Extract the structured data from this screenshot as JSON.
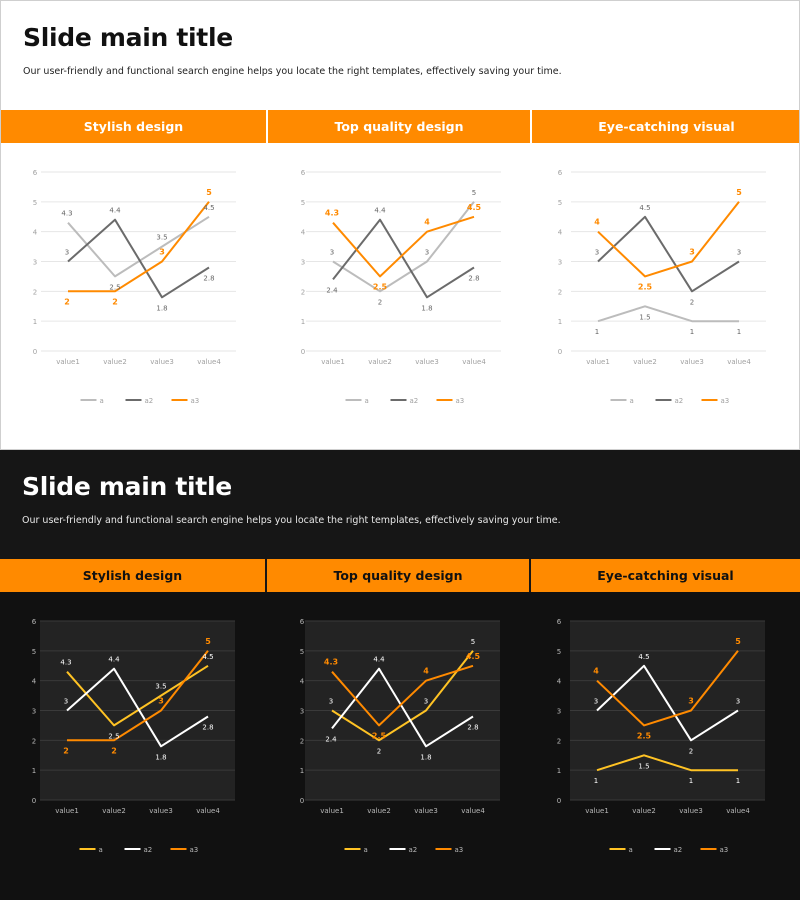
{
  "slides": [
    {
      "theme": "light",
      "title": "Slide main title",
      "subtitle": "Our user-friendly and functional search engine helps you locate the right templates, effectively saving your time."
    },
    {
      "theme": "dark",
      "title": "Slide main title",
      "subtitle": "Our user-friendly and functional search engine helps you locate the right templates, effectively saving your time."
    }
  ],
  "panels": [
    {
      "header": "Stylish design"
    },
    {
      "header": "Top quality design"
    },
    {
      "header": "Eye-catching visual"
    }
  ],
  "colors": {
    "accent": "#ff8a00",
    "light": {
      "a": "#bcbcbc",
      "a2": "#6b6b6b",
      "a3": "#ff8a00",
      "grid": "#e6e6e6",
      "tick": "#a0a0a0",
      "label": "#666666"
    },
    "dark": {
      "a": "#ffc324",
      "a2": "#ffffff",
      "a3": "#ff8a00",
      "grid": "#3a3a3a",
      "tick": "#b8b8b8",
      "label": "#ffffff",
      "plot": "#232323"
    }
  },
  "chart_data": [
    {
      "type": "line",
      "title": "Stylish design",
      "categories": [
        "value1",
        "value2",
        "value3",
        "value4"
      ],
      "ylim": [
        0,
        6
      ],
      "yticks": [
        "0",
        "1",
        "2",
        "3",
        "4",
        "5",
        "6"
      ],
      "series": [
        {
          "name": "a",
          "values": [
            4.3,
            2.5,
            3.5,
            4.5
          ],
          "labels": [
            "4.3",
            "2.5",
            "3.5",
            "4.5"
          ]
        },
        {
          "name": "a2",
          "values": [
            3,
            4.4,
            1.8,
            2.8
          ],
          "labels": [
            "3",
            "4.4",
            "1.8",
            "2.8"
          ]
        },
        {
          "name": "a3",
          "values": [
            2,
            2,
            3,
            5
          ],
          "labels": [
            "2",
            "2",
            "3",
            "5"
          ]
        }
      ]
    },
    {
      "type": "line",
      "title": "Top quality design",
      "categories": [
        "value1",
        "value2",
        "value3",
        "value4"
      ],
      "ylim": [
        0,
        6
      ],
      "yticks": [
        "0",
        "1",
        "2",
        "3",
        "4",
        "5",
        "6"
      ],
      "series": [
        {
          "name": "a",
          "values": [
            3,
            2,
            3,
            5
          ],
          "labels": [
            "3",
            "2",
            "3",
            "5"
          ]
        },
        {
          "name": "a2",
          "values": [
            2.4,
            4.4,
            1.8,
            2.8
          ],
          "labels": [
            "2.4",
            "4.4",
            "1.8",
            "2.8"
          ]
        },
        {
          "name": "a3",
          "values": [
            4.3,
            2.5,
            4,
            4.5
          ],
          "labels": [
            "4.3",
            "2.5",
            "4",
            "4.5"
          ]
        }
      ]
    },
    {
      "type": "line",
      "title": "Eye-catching visual",
      "categories": [
        "value1",
        "value2",
        "value3",
        "value4"
      ],
      "ylim": [
        0,
        6
      ],
      "yticks": [
        "0",
        "1",
        "2",
        "3",
        "4",
        "5",
        "6"
      ],
      "series": [
        {
          "name": "a",
          "values": [
            1,
            1.5,
            1,
            1
          ],
          "labels": [
            "1",
            "1.5",
            "1",
            "1"
          ]
        },
        {
          "name": "a2",
          "values": [
            3,
            4.5,
            2,
            3
          ],
          "labels": [
            "3",
            "4.5",
            "2",
            "3"
          ]
        },
        {
          "name": "a3",
          "values": [
            4,
            2.5,
            3,
            5
          ],
          "labels": [
            "4",
            "2.5",
            "3",
            "5"
          ]
        }
      ]
    }
  ]
}
